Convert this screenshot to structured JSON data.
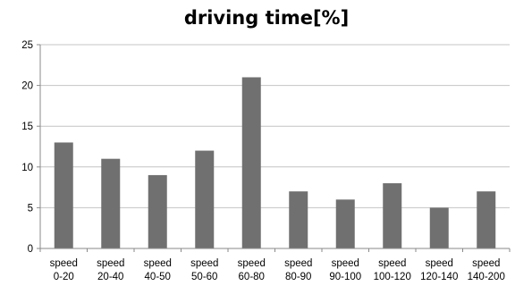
{
  "chart_data": {
    "type": "bar",
    "title": "driving time[%]",
    "xlabel": "",
    "ylabel": "",
    "ylim": [
      0,
      25
    ],
    "yticks": [
      "0",
      "5",
      "10",
      "15",
      "20",
      "25"
    ],
    "grid": true,
    "legend": "none",
    "categories": [
      [
        "speed",
        "0-20"
      ],
      [
        "speed",
        "20-40"
      ],
      [
        "speed",
        "40-50"
      ],
      [
        "speed",
        "50-60"
      ],
      [
        "speed",
        "60-80"
      ],
      [
        "speed",
        "80-90"
      ],
      [
        "speed",
        "90-100"
      ],
      [
        "speed",
        "100-120"
      ],
      [
        "speed",
        "120-140"
      ],
      [
        "speed",
        "140-200"
      ]
    ],
    "values": [
      13,
      11,
      9,
      12,
      21,
      7,
      6,
      8,
      5,
      7
    ],
    "colors": {
      "bar": "#707070",
      "grid": "#c4c4c4",
      "axis": "#8a8a8a"
    }
  }
}
